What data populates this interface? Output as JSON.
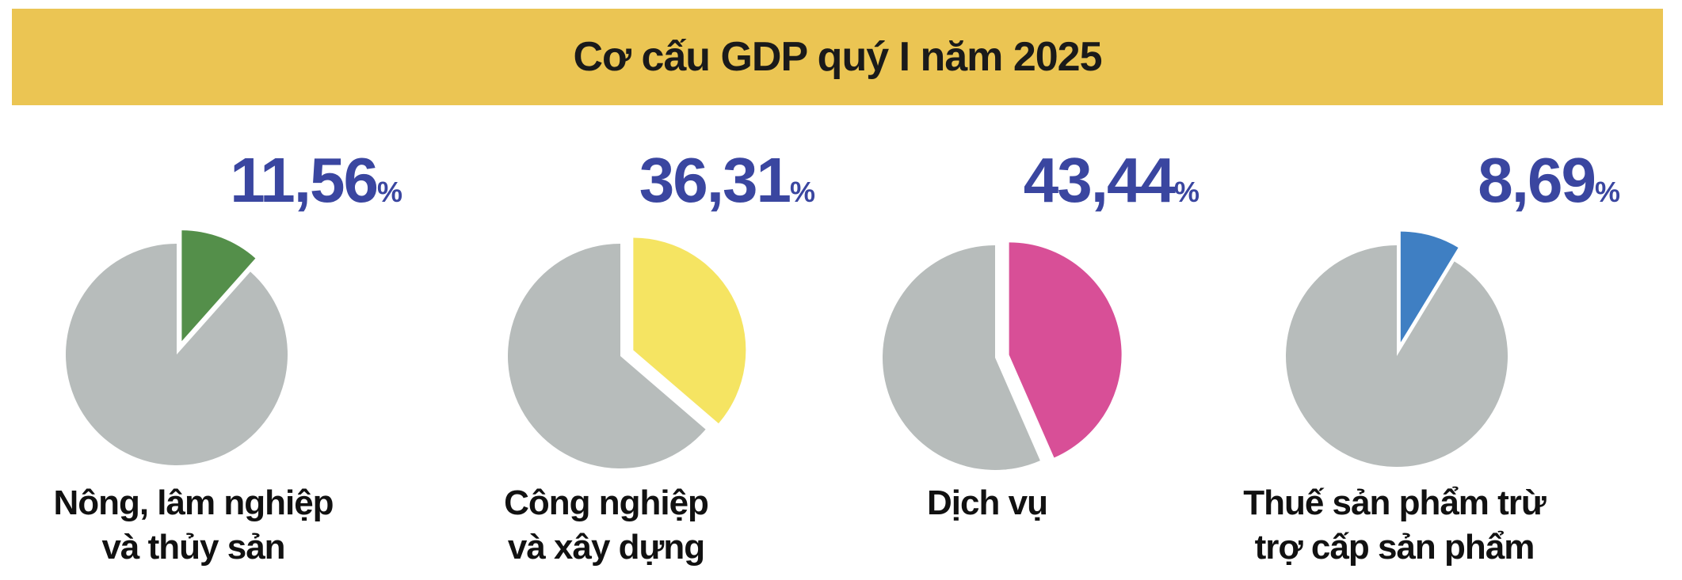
{
  "title": "Cơ cấu GDP quý I năm 2025",
  "chart_data": [
    {
      "type": "pie",
      "categories": [
        "Nông, lâm nghiệp\nvà thủy sản"
      ],
      "values": [
        11.56
      ],
      "value_labels": [
        "11,56%"
      ],
      "colors": [
        "#548f4a"
      ],
      "other_color": "#b7bcbb"
    },
    {
      "type": "pie",
      "categories": [
        "Công nghiệp\nvà xây dựng"
      ],
      "values": [
        36.31
      ],
      "value_labels": [
        "36,31%"
      ],
      "colors": [
        "#f5e462"
      ],
      "other_color": "#b7bcbb"
    },
    {
      "type": "pie",
      "categories": [
        "Dịch vụ"
      ],
      "values": [
        43.44
      ],
      "value_labels": [
        "43,44%"
      ],
      "colors": [
        "#d84f97"
      ],
      "other_color": "#b7bcbb"
    },
    {
      "type": "pie",
      "categories": [
        "Thuế sản phẩm trừ\ntrợ cấp sản phẩm"
      ],
      "values": [
        8.69
      ],
      "value_labels": [
        "8,69%"
      ],
      "colors": [
        "#3f7fc3"
      ],
      "other_color": "#b7bcbb"
    }
  ]
}
